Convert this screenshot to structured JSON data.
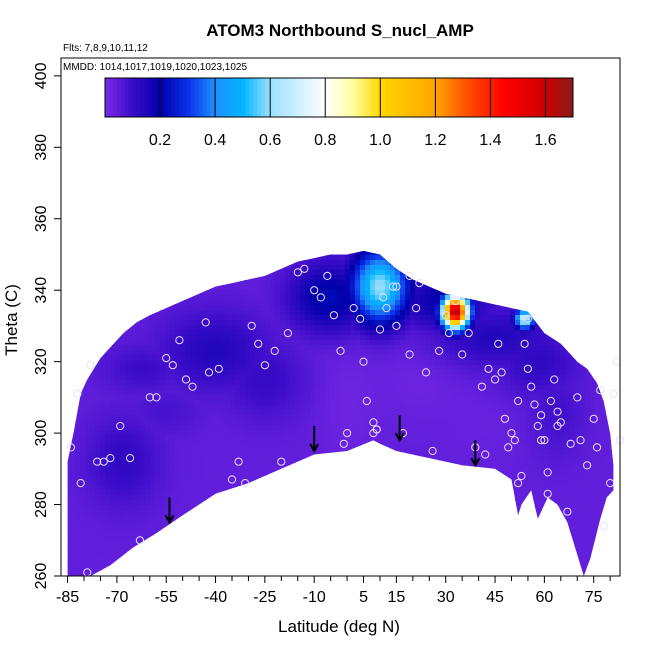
{
  "chart_data": {
    "type": "heatmap",
    "title": "ATOM3 Northbound S_nucl_AMP",
    "annotations": {
      "flights": "Flts: 7,8,9,10,11,12",
      "dates": "MMDD: 1014,1017,1019,1020,1023,1025"
    },
    "xlabel": "Latitude (deg N)",
    "ylabel": "Theta (C)",
    "xlim": [
      -87,
      83
    ],
    "ylim": [
      260,
      405
    ],
    "x_tick_labels": [
      "-85",
      "-70",
      "-55",
      "-40",
      "-25",
      "-10",
      "5",
      "15",
      "30",
      "45",
      "60",
      "75"
    ],
    "x_tick_values": [
      -85,
      -70,
      -55,
      -40,
      -25,
      -10,
      5,
      15,
      30,
      45,
      60,
      75
    ],
    "x_minor_ticks": [
      -80,
      -75,
      -65,
      -60,
      -50,
      -45,
      -35,
      -30,
      -20,
      -15,
      -5,
      0,
      10,
      20,
      25,
      35,
      40,
      50,
      55,
      65,
      70,
      80
    ],
    "y_tick_labels": [
      "260",
      "280",
      "300",
      "320",
      "340",
      "360",
      "380",
      "400"
    ],
    "y_tick_values": [
      260,
      280,
      300,
      320,
      340,
      360,
      380,
      400
    ],
    "colorbar": {
      "range": [
        0.0,
        1.7
      ],
      "tick_values": [
        0.2,
        0.4,
        0.6,
        0.8,
        1.0,
        1.2,
        1.4,
        1.6
      ],
      "tick_labels": [
        "0.2",
        "0.4",
        "0.6",
        "0.8",
        "1.0",
        "1.2",
        "1.4",
        "1.6"
      ],
      "colors": [
        "#7b2be8",
        "#3a0cc8",
        "#0000aa",
        "#0a30e8",
        "#1e90ff",
        "#00b4ff",
        "#9be0ff",
        "#ffffff",
        "#ffffa0",
        "#ffd700",
        "#ffa500",
        "#ff5a00",
        "#ff0000",
        "#cc0000",
        "#8b1a1a"
      ],
      "stops": [
        0.0,
        0.1,
        0.2,
        0.3,
        0.4,
        0.5,
        0.6,
        0.8,
        0.9,
        1.0,
        1.2,
        1.3,
        1.45,
        1.6,
        1.7
      ]
    },
    "background_value": 0.04,
    "region_boundary": [
      [
        -85,
        259
      ],
      [
        -85,
        292
      ],
      [
        -83,
        301
      ],
      [
        -81,
        311
      ],
      [
        -79,
        315
      ],
      [
        -77,
        318
      ],
      [
        -75,
        321
      ],
      [
        -72,
        324
      ],
      [
        -68,
        328
      ],
      [
        -64,
        331
      ],
      [
        -60,
        333
      ],
      [
        -55,
        335
      ],
      [
        -50,
        337
      ],
      [
        -45,
        339
      ],
      [
        -40,
        341
      ],
      [
        -35,
        342
      ],
      [
        -30,
        343
      ],
      [
        -25,
        344
      ],
      [
        -20,
        346
      ],
      [
        -15,
        348
      ],
      [
        -10,
        349
      ],
      [
        -5,
        350
      ],
      [
        0,
        350
      ],
      [
        5,
        351
      ],
      [
        10,
        350
      ],
      [
        15,
        346
      ],
      [
        20,
        343
      ],
      [
        25,
        341
      ],
      [
        30,
        339
      ],
      [
        35,
        338
      ],
      [
        40,
        337
      ],
      [
        45,
        336
      ],
      [
        50,
        335
      ],
      [
        55,
        334
      ],
      [
        60,
        328
      ],
      [
        65,
        325
      ],
      [
        68,
        322
      ],
      [
        70,
        320
      ],
      [
        73,
        318
      ],
      [
        76,
        314
      ],
      [
        78,
        309
      ],
      [
        80,
        300
      ],
      [
        81,
        291
      ],
      [
        81,
        284
      ],
      [
        79,
        282
      ],
      [
        77,
        276
      ],
      [
        74,
        265
      ],
      [
        72,
        260
      ],
      [
        67,
        275
      ],
      [
        64,
        280
      ],
      [
        61,
        282
      ],
      [
        58,
        276
      ],
      [
        56,
        284
      ],
      [
        53,
        280
      ],
      [
        52,
        277
      ],
      [
        50,
        287
      ],
      [
        45,
        290
      ],
      [
        35,
        291
      ],
      [
        25,
        293
      ],
      [
        15,
        295
      ],
      [
        10,
        297
      ],
      [
        8,
        298
      ],
      [
        0,
        295
      ],
      [
        -10,
        294
      ],
      [
        -20,
        290
      ],
      [
        -30,
        286
      ],
      [
        -40,
        283
      ],
      [
        -50,
        277
      ],
      [
        -58,
        272
      ],
      [
        -65,
        268
      ],
      [
        -72,
        263
      ],
      [
        -80,
        259
      ]
    ],
    "field_blobs": [
      {
        "x": 10,
        "y": 341,
        "sx": 6,
        "sy": 7,
        "value": 0.6
      },
      {
        "x": 11,
        "y": 343,
        "sx": 3,
        "sy": 3,
        "value": 0.55
      },
      {
        "x": 5,
        "y": 338,
        "sx": 4,
        "sy": 4,
        "value": 0.12
      },
      {
        "x": 33,
        "y": 334,
        "sx": 2.8,
        "sy": 3.2,
        "value": 1.65
      },
      {
        "x": 54,
        "y": 332,
        "sx": 2,
        "sy": 2,
        "value": 0.7
      },
      {
        "x": -5,
        "y": 338,
        "sx": 9,
        "sy": 7,
        "value": 0.22
      },
      {
        "x": 30,
        "y": 337,
        "sx": 10,
        "sy": 6,
        "value": 0.2
      },
      {
        "x": 45,
        "y": 327,
        "sx": 14,
        "sy": 6,
        "value": 0.14
      },
      {
        "x": 58,
        "y": 320,
        "sx": 9,
        "sy": 7,
        "value": 0.12
      },
      {
        "x": 64,
        "y": 306,
        "sx": 6,
        "sy": 9,
        "value": 0.09
      },
      {
        "x": -40,
        "y": 323,
        "sx": 12,
        "sy": 8,
        "value": 0.14
      },
      {
        "x": -25,
        "y": 315,
        "sx": 9,
        "sy": 8,
        "value": 0.11
      },
      {
        "x": -62,
        "y": 318,
        "sx": 9,
        "sy": 5,
        "value": 0.1
      },
      {
        "x": -68,
        "y": 292,
        "sx": 8,
        "sy": 9,
        "value": 0.12
      },
      {
        "x": -55,
        "y": 306,
        "sx": 8,
        "sy": 5,
        "value": 0.08
      },
      {
        "x": 0,
        "y": 308,
        "sx": 6,
        "sy": 12,
        "value": 0.02
      },
      {
        "x": 22,
        "y": 315,
        "sx": 8,
        "sy": 7,
        "value": 0.02
      },
      {
        "x": 42,
        "y": 302,
        "sx": 8,
        "sy": 7,
        "value": 0.03
      }
    ],
    "observation_points": [
      [
        -84,
        296
      ],
      [
        -82,
        311
      ],
      [
        -78,
        319
      ],
      [
        -81,
        286
      ],
      [
        -79,
        261
      ],
      [
        -76,
        292
      ],
      [
        -74,
        292
      ],
      [
        -72,
        293
      ],
      [
        -69,
        302
      ],
      [
        -66,
        293
      ],
      [
        -63,
        270
      ],
      [
        -60,
        310
      ],
      [
        -58,
        310
      ],
      [
        -55,
        321
      ],
      [
        -53,
        319
      ],
      [
        -51,
        326
      ],
      [
        -49,
        315
      ],
      [
        -47,
        313
      ],
      [
        -43,
        331
      ],
      [
        -42,
        317
      ],
      [
        -39,
        318
      ],
      [
        -35,
        287
      ],
      [
        -33,
        292
      ],
      [
        -31,
        286
      ],
      [
        -29,
        330
      ],
      [
        -27,
        325
      ],
      [
        -25,
        319
      ],
      [
        -22,
        323
      ],
      [
        -20,
        292
      ],
      [
        -18,
        328
      ],
      [
        -15,
        345
      ],
      [
        -13,
        346
      ],
      [
        -10,
        340
      ],
      [
        -8,
        338
      ],
      [
        -6,
        344
      ],
      [
        -4,
        333
      ],
      [
        -2,
        323
      ],
      [
        0,
        300
      ],
      [
        2,
        335
      ],
      [
        4,
        332
      ],
      [
        5,
        320
      ],
      [
        6,
        309
      ],
      [
        8,
        303
      ],
      [
        8,
        300
      ],
      [
        9,
        301
      ],
      [
        9,
        301
      ],
      [
        10,
        329
      ],
      [
        12,
        335
      ],
      [
        14,
        341
      ],
      [
        15,
        330
      ],
      [
        17,
        300
      ],
      [
        19,
        322
      ],
      [
        21,
        335
      ],
      [
        22,
        342
      ],
      [
        24,
        317
      ],
      [
        26,
        295
      ],
      [
        28,
        323
      ],
      [
        30,
        333
      ],
      [
        31,
        328
      ],
      [
        33,
        337
      ],
      [
        35,
        322
      ],
      [
        37,
        328
      ],
      [
        39,
        296
      ],
      [
        41,
        313
      ],
      [
        43,
        318
      ],
      [
        45,
        315
      ],
      [
        46,
        325
      ],
      [
        47,
        317
      ],
      [
        48,
        304
      ],
      [
        49,
        296
      ],
      [
        50,
        300
      ],
      [
        51,
        298
      ],
      [
        52,
        286
      ],
      [
        53,
        288
      ],
      [
        54,
        325
      ],
      [
        55,
        318
      ],
      [
        55,
        332
      ],
      [
        56,
        313
      ],
      [
        57,
        308
      ],
      [
        58,
        302
      ],
      [
        59,
        305
      ],
      [
        59,
        298
      ],
      [
        60,
        298
      ],
      [
        61,
        289
      ],
      [
        61,
        283
      ],
      [
        62,
        309
      ],
      [
        63,
        315
      ],
      [
        64,
        306
      ],
      [
        64,
        302
      ],
      [
        65,
        303
      ],
      [
        67,
        278
      ],
      [
        68,
        297
      ],
      [
        70,
        310
      ],
      [
        71,
        298
      ],
      [
        73,
        291
      ],
      [
        75,
        304
      ],
      [
        76,
        296
      ],
      [
        77,
        312
      ],
      [
        78,
        274
      ],
      [
        80,
        286
      ],
      [
        81,
        311
      ],
      [
        82,
        320
      ],
      [
        83,
        298
      ],
      [
        -1,
        297
      ],
      [
        15,
        341
      ],
      [
        11,
        338
      ],
      [
        19,
        344
      ],
      [
        52,
        309
      ],
      [
        42,
        294
      ]
    ],
    "arrows": [
      {
        "x": -54,
        "y_top": 282,
        "y_bottom": 275
      },
      {
        "x": -10,
        "y_top": 302,
        "y_bottom": 295
      },
      {
        "x": 16,
        "y_top": 305,
        "y_bottom": 298
      },
      {
        "x": 39,
        "y_top": 298,
        "y_bottom": 291
      }
    ]
  }
}
